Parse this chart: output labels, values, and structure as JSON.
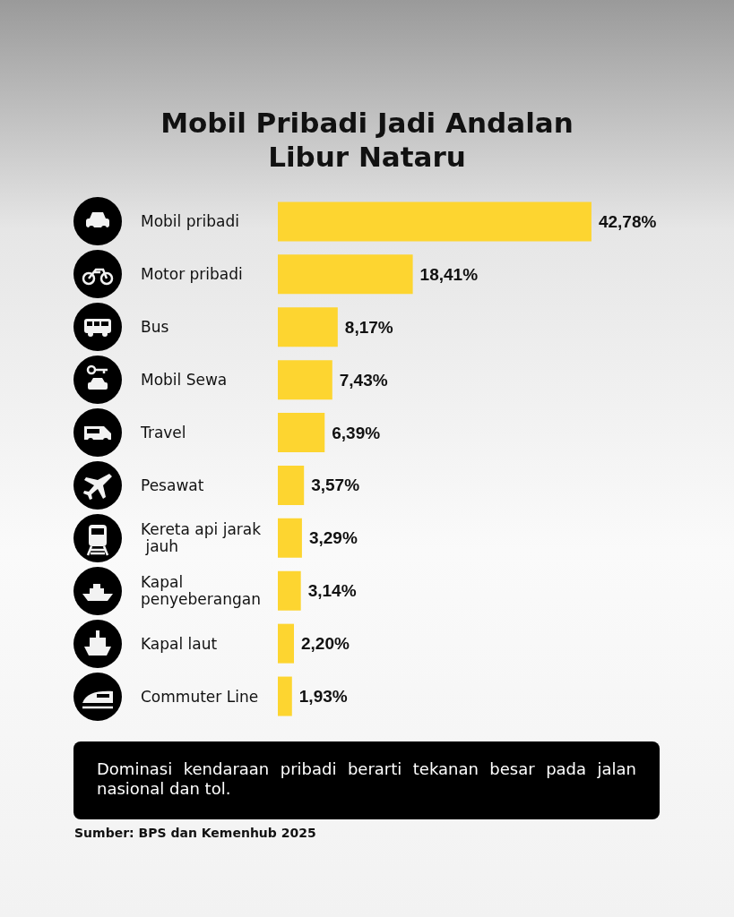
{
  "chart_data": {
    "type": "bar",
    "orientation": "horizontal",
    "title": "Mobil Pribadi Jadi Andalan Libur Nataru",
    "categories": [
      "Mobil pribadi",
      "Motor pribadi",
      "Bus",
      "Mobil Sewa",
      "Travel",
      "Pesawat",
      "Kereta api jarak jauh",
      "Kapal penyeberangan",
      "Kapal laut",
      "Commuter Line"
    ],
    "values": [
      42.78,
      18.41,
      8.17,
      7.43,
      6.39,
      3.57,
      3.29,
      3.14,
      2.2,
      1.93
    ],
    "value_labels": [
      "42,78%",
      "18,41%",
      "8,17%",
      "7,43%",
      "6,39%",
      "3,57%",
      "3,29%",
      "3,14%",
      "2,20%",
      "1,93%"
    ],
    "color": "#fdd530",
    "annotations": [
      "Dominasi kendaraan pribadi berarti tekanan besar pada jalan nasional dan tol.",
      "Sumber: BPS dan Kemenhub  2025"
    ]
  }
}
